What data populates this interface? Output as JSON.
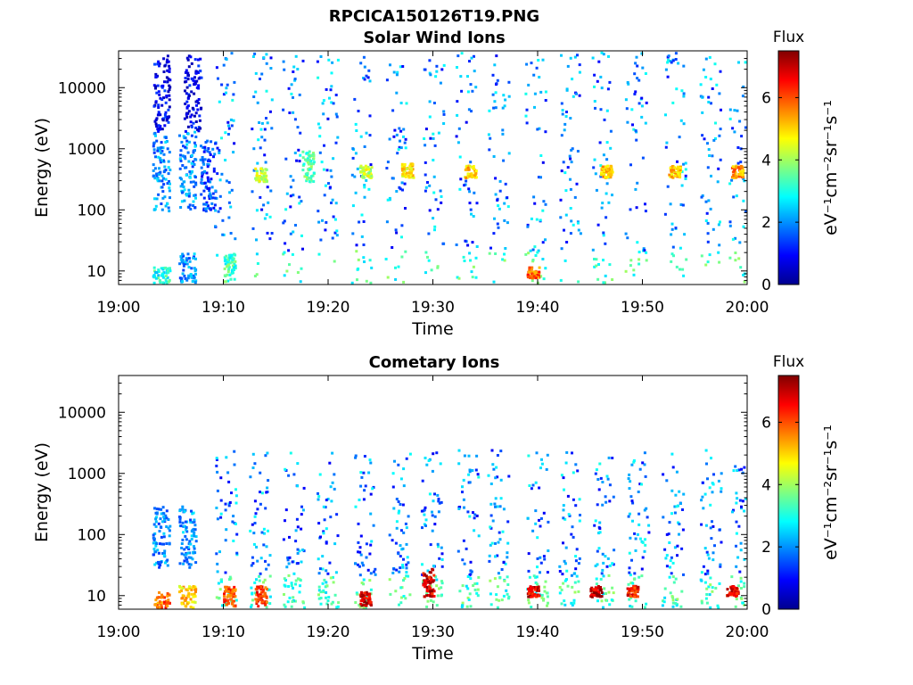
{
  "figure_title": "RPCICA150126T19.PNG",
  "colors": {
    "jet": [
      "#00008f",
      "#0000ff",
      "#0080ff",
      "#00ffff",
      "#80ff80",
      "#ffff00",
      "#ff8000",
      "#ff0000",
      "#800000"
    ]
  },
  "chart_data": [
    {
      "type": "heatmap",
      "title": "Solar Wind Ions",
      "xlabel": "Time",
      "ylabel": "Energy (eV)",
      "x_ticks": [
        "19:00",
        "19:10",
        "19:20",
        "19:30",
        "19:40",
        "19:50",
        "20:00"
      ],
      "xlim_minutes": [
        0,
        60
      ],
      "y_ticks": [
        "10",
        "100",
        "1000",
        "10000"
      ],
      "y_scale": "log",
      "ylim": [
        6,
        40000
      ],
      "colorbar": {
        "title": "Flux",
        "label": "eV⁻¹cm⁻²sr⁻¹s⁻¹",
        "ticks": [
          "0",
          "2",
          "4",
          "6"
        ],
        "range": [
          0,
          7.5
        ]
      },
      "features": [
        {
          "t": 4.0,
          "e_min": 100,
          "e_max": 2000,
          "flux": 2.0
        },
        {
          "t": 4.0,
          "e_min": 2000,
          "e_max": 35000,
          "flux": 0.8
        },
        {
          "t": 4.0,
          "e_min": 6,
          "e_max": 12,
          "flux": 3.0
        },
        {
          "t": 6.5,
          "e_min": 100,
          "e_max": 2000,
          "flux": 2.0
        },
        {
          "t": 7.0,
          "e_min": 2000,
          "e_max": 35000,
          "flux": 0.8
        },
        {
          "t": 6.5,
          "e_min": 6,
          "e_max": 20,
          "flux": 2.0
        },
        {
          "t": 8.5,
          "e_min": 100,
          "e_max": 1500,
          "flux": 1.5
        },
        {
          "t": 10.5,
          "e_min": 7,
          "e_max": 20,
          "flux": 3.3
        },
        {
          "t": 13.5,
          "e_min": 300,
          "e_max": 500,
          "flux": 4.2
        },
        {
          "t": 18.0,
          "e_min": 300,
          "e_max": 1000,
          "flux": 3.5
        },
        {
          "t": 23.5,
          "e_min": 350,
          "e_max": 550,
          "flux": 4.3
        },
        {
          "t": 27.5,
          "e_min": 350,
          "e_max": 600,
          "flux": 4.8
        },
        {
          "t": 33.5,
          "e_min": 350,
          "e_max": 550,
          "flux": 5.0
        },
        {
          "t": 39.5,
          "e_min": 8,
          "e_max": 12,
          "flux": 5.8
        },
        {
          "t": 46.5,
          "e_min": 350,
          "e_max": 550,
          "flux": 5.2
        },
        {
          "t": 53.0,
          "e_min": 350,
          "e_max": 550,
          "flux": 5.0
        },
        {
          "t": 59.0,
          "e_min": 350,
          "e_max": 550,
          "flux": 5.5
        }
      ]
    },
    {
      "type": "heatmap",
      "title": "Cometary Ions",
      "xlabel": "Time",
      "ylabel": "Energy (eV)",
      "x_ticks": [
        "19:00",
        "19:10",
        "19:20",
        "19:30",
        "19:40",
        "19:50",
        "20:00"
      ],
      "xlim_minutes": [
        0,
        60
      ],
      "y_ticks": [
        "10",
        "100",
        "1000",
        "10000"
      ],
      "y_scale": "log",
      "ylim": [
        6,
        40000
      ],
      "colorbar": {
        "title": "Flux",
        "label": "eV⁻¹cm⁻²sr⁻¹s⁻¹",
        "ticks": [
          "0",
          "2",
          "4",
          "6"
        ],
        "range": [
          0,
          7.5
        ]
      },
      "features": [
        {
          "t": 4.0,
          "e_min": 6,
          "e_max": 12,
          "flux": 5.8
        },
        {
          "t": 4.0,
          "e_min": 30,
          "e_max": 300,
          "flux": 2.0
        },
        {
          "t": 6.5,
          "e_min": 6,
          "e_max": 15,
          "flux": 5.0
        },
        {
          "t": 6.5,
          "e_min": 30,
          "e_max": 300,
          "flux": 2.0
        },
        {
          "t": 10.5,
          "e_min": 7,
          "e_max": 15,
          "flux": 6.0
        },
        {
          "t": 13.5,
          "e_min": 7,
          "e_max": 15,
          "flux": 6.2
        },
        {
          "t": 23.5,
          "e_min": 7,
          "e_max": 12,
          "flux": 6.8
        },
        {
          "t": 29.5,
          "e_min": 10,
          "e_max": 30,
          "flux": 6.8
        },
        {
          "t": 39.5,
          "e_min": 10,
          "e_max": 15,
          "flux": 6.8
        },
        {
          "t": 45.5,
          "e_min": 10,
          "e_max": 15,
          "flux": 7.0
        },
        {
          "t": 49.0,
          "e_min": 10,
          "e_max": 15,
          "flux": 6.5
        },
        {
          "t": 58.5,
          "e_min": 10,
          "e_max": 15,
          "flux": 6.5
        }
      ]
    }
  ]
}
